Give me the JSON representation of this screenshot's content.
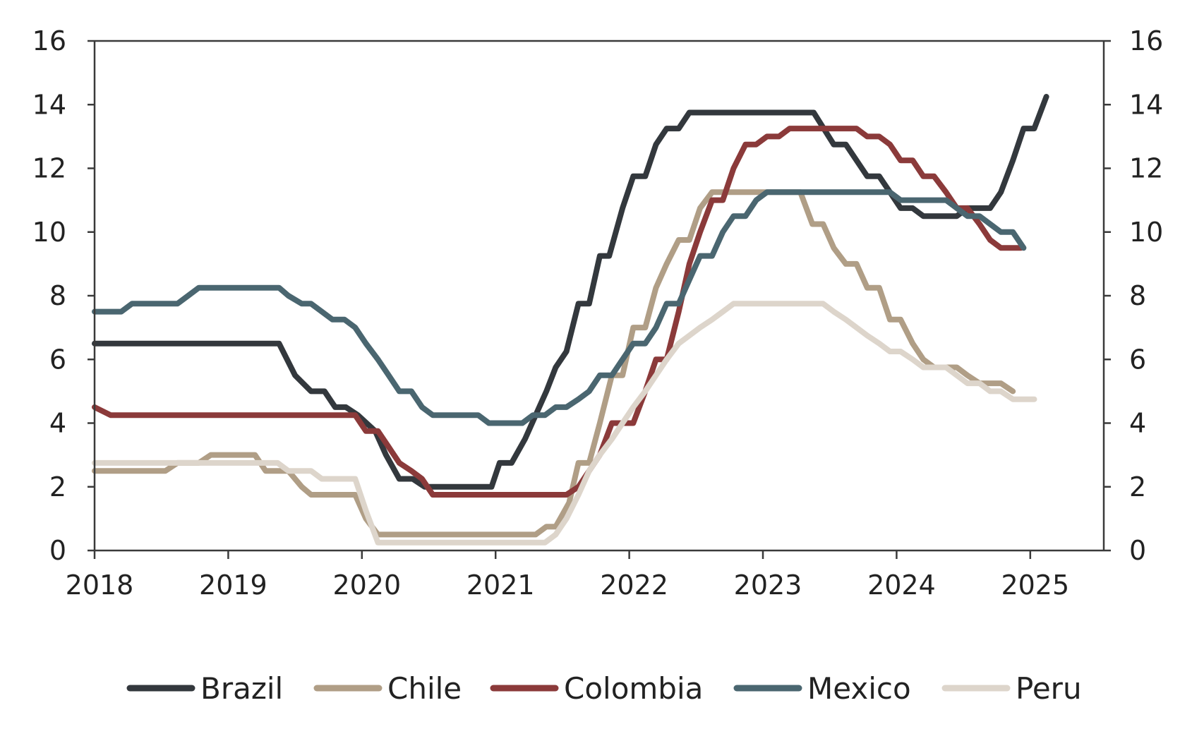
{
  "chart_data": {
    "type": "line",
    "title": "",
    "xlabel": "",
    "ylabel": "",
    "xlim": [
      2018,
      2025.55
    ],
    "ylim": [
      0,
      16
    ],
    "y_ticks": [
      "0",
      "2",
      "4",
      "6",
      "8",
      "10",
      "12",
      "14",
      "16"
    ],
    "y_ticks_right": [
      "0",
      "2",
      "4",
      "6",
      "8",
      "10",
      "12",
      "14",
      "16"
    ],
    "x_ticks": [
      "2018",
      "2019",
      "2020",
      "2021",
      "2022",
      "2023",
      "2024",
      "2025"
    ],
    "grid": false,
    "legend_position": "bottom",
    "series": [
      {
        "name": "Brazil",
        "color": "#33383d",
        "points": [
          [
            2018.0,
            6.5
          ],
          [
            2019.38,
            6.5
          ],
          [
            2019.5,
            5.5
          ],
          [
            2019.62,
            5.0
          ],
          [
            2019.72,
            5.0
          ],
          [
            2019.8,
            4.5
          ],
          [
            2019.88,
            4.5
          ],
          [
            2019.97,
            4.25
          ],
          [
            2020.1,
            3.75
          ],
          [
            2020.18,
            3.0
          ],
          [
            2020.28,
            2.25
          ],
          [
            2020.38,
            2.25
          ],
          [
            2020.47,
            2.0
          ],
          [
            2020.97,
            2.0
          ],
          [
            2021.03,
            2.75
          ],
          [
            2021.12,
            2.75
          ],
          [
            2021.22,
            3.5
          ],
          [
            2021.3,
            4.25
          ],
          [
            2021.38,
            5.0
          ],
          [
            2021.45,
            5.75
          ],
          [
            2021.53,
            6.25
          ],
          [
            2021.62,
            7.75
          ],
          [
            2021.7,
            7.75
          ],
          [
            2021.78,
            9.25
          ],
          [
            2021.85,
            9.25
          ],
          [
            2021.95,
            10.75
          ],
          [
            2022.03,
            11.75
          ],
          [
            2022.12,
            11.75
          ],
          [
            2022.2,
            12.75
          ],
          [
            2022.28,
            13.25
          ],
          [
            2022.37,
            13.25
          ],
          [
            2022.45,
            13.75
          ],
          [
            2023.38,
            13.75
          ],
          [
            2023.53,
            12.75
          ],
          [
            2023.62,
            12.75
          ],
          [
            2023.78,
            11.75
          ],
          [
            2023.87,
            11.75
          ],
          [
            2023.95,
            11.25
          ],
          [
            2024.03,
            10.75
          ],
          [
            2024.12,
            10.75
          ],
          [
            2024.2,
            10.5
          ],
          [
            2024.45,
            10.5
          ],
          [
            2024.53,
            10.75
          ],
          [
            2024.7,
            10.75
          ],
          [
            2024.78,
            11.25
          ],
          [
            2024.87,
            12.25
          ],
          [
            2024.95,
            13.25
          ],
          [
            2025.03,
            13.25
          ],
          [
            2025.12,
            14.25
          ]
        ]
      },
      {
        "name": "Chile",
        "color": "#b09e86",
        "points": [
          [
            2018.0,
            2.5
          ],
          [
            2018.53,
            2.5
          ],
          [
            2018.62,
            2.75
          ],
          [
            2018.78,
            2.75
          ],
          [
            2018.87,
            3.0
          ],
          [
            2019.2,
            3.0
          ],
          [
            2019.28,
            2.5
          ],
          [
            2019.45,
            2.5
          ],
          [
            2019.55,
            2.0
          ],
          [
            2019.62,
            1.75
          ],
          [
            2019.95,
            1.75
          ],
          [
            2020.03,
            1.0
          ],
          [
            2020.12,
            0.5
          ],
          [
            2021.3,
            0.5
          ],
          [
            2021.38,
            0.75
          ],
          [
            2021.45,
            0.75
          ],
          [
            2021.55,
            1.5
          ],
          [
            2021.62,
            2.75
          ],
          [
            2021.7,
            2.75
          ],
          [
            2021.78,
            4.0
          ],
          [
            2021.87,
            5.5
          ],
          [
            2021.95,
            5.5
          ],
          [
            2022.03,
            7.0
          ],
          [
            2022.12,
            7.0
          ],
          [
            2022.2,
            8.25
          ],
          [
            2022.28,
            9.0
          ],
          [
            2022.37,
            9.75
          ],
          [
            2022.45,
            9.75
          ],
          [
            2022.53,
            10.75
          ],
          [
            2022.62,
            11.25
          ],
          [
            2023.28,
            11.25
          ],
          [
            2023.37,
            10.25
          ],
          [
            2023.45,
            10.25
          ],
          [
            2023.53,
            9.5
          ],
          [
            2023.62,
            9.0
          ],
          [
            2023.7,
            9.0
          ],
          [
            2023.78,
            8.25
          ],
          [
            2023.87,
            8.25
          ],
          [
            2023.95,
            7.25
          ],
          [
            2024.03,
            7.25
          ],
          [
            2024.12,
            6.5
          ],
          [
            2024.2,
            6.0
          ],
          [
            2024.28,
            5.75
          ],
          [
            2024.45,
            5.75
          ],
          [
            2024.53,
            5.5
          ],
          [
            2024.62,
            5.25
          ],
          [
            2024.78,
            5.25
          ],
          [
            2024.87,
            5.0
          ]
        ]
      },
      {
        "name": "Colombia",
        "color": "#8b3a3a",
        "points": [
          [
            2018.0,
            4.5
          ],
          [
            2018.12,
            4.25
          ],
          [
            2019.95,
            4.25
          ],
          [
            2020.03,
            3.75
          ],
          [
            2020.12,
            3.75
          ],
          [
            2020.2,
            3.25
          ],
          [
            2020.28,
            2.75
          ],
          [
            2020.37,
            2.5
          ],
          [
            2020.45,
            2.25
          ],
          [
            2020.53,
            1.75
          ],
          [
            2021.53,
            1.75
          ],
          [
            2021.62,
            2.0
          ],
          [
            2021.7,
            2.5
          ],
          [
            2021.78,
            3.0
          ],
          [
            2021.87,
            4.0
          ],
          [
            2021.95,
            4.0
          ],
          [
            2022.03,
            4.0
          ],
          [
            2022.12,
            5.0
          ],
          [
            2022.2,
            6.0
          ],
          [
            2022.28,
            6.0
          ],
          [
            2022.37,
            7.5
          ],
          [
            2022.45,
            9.0
          ],
          [
            2022.53,
            10.0
          ],
          [
            2022.62,
            11.0
          ],
          [
            2022.7,
            11.0
          ],
          [
            2022.78,
            12.0
          ],
          [
            2022.87,
            12.75
          ],
          [
            2022.95,
            12.75
          ],
          [
            2023.03,
            13.0
          ],
          [
            2023.12,
            13.0
          ],
          [
            2023.2,
            13.25
          ],
          [
            2023.7,
            13.25
          ],
          [
            2023.78,
            13.0
          ],
          [
            2023.87,
            13.0
          ],
          [
            2023.95,
            12.75
          ],
          [
            2024.03,
            12.25
          ],
          [
            2024.12,
            12.25
          ],
          [
            2024.2,
            11.75
          ],
          [
            2024.28,
            11.75
          ],
          [
            2024.37,
            11.25
          ],
          [
            2024.45,
            10.75
          ],
          [
            2024.53,
            10.75
          ],
          [
            2024.62,
            10.25
          ],
          [
            2024.7,
            9.75
          ],
          [
            2024.78,
            9.5
          ],
          [
            2024.93,
            9.5
          ]
        ]
      },
      {
        "name": "Mexico",
        "color": "#4a6670",
        "points": [
          [
            2018.0,
            7.5
          ],
          [
            2018.2,
            7.5
          ],
          [
            2018.28,
            7.75
          ],
          [
            2018.62,
            7.75
          ],
          [
            2018.7,
            8.0
          ],
          [
            2018.78,
            8.25
          ],
          [
            2019.38,
            8.25
          ],
          [
            2019.45,
            8.0
          ],
          [
            2019.55,
            7.75
          ],
          [
            2019.62,
            7.75
          ],
          [
            2019.7,
            7.5
          ],
          [
            2019.78,
            7.25
          ],
          [
            2019.87,
            7.25
          ],
          [
            2019.95,
            7.0
          ],
          [
            2020.03,
            6.5
          ],
          [
            2020.12,
            6.0
          ],
          [
            2020.2,
            5.5
          ],
          [
            2020.28,
            5.0
          ],
          [
            2020.37,
            5.0
          ],
          [
            2020.45,
            4.5
          ],
          [
            2020.53,
            4.25
          ],
          [
            2020.87,
            4.25
          ],
          [
            2020.95,
            4.0
          ],
          [
            2021.2,
            4.0
          ],
          [
            2021.28,
            4.25
          ],
          [
            2021.37,
            4.25
          ],
          [
            2021.45,
            4.5
          ],
          [
            2021.53,
            4.5
          ],
          [
            2021.62,
            4.75
          ],
          [
            2021.7,
            5.0
          ],
          [
            2021.78,
            5.5
          ],
          [
            2021.87,
            5.5
          ],
          [
            2021.95,
            6.0
          ],
          [
            2022.03,
            6.5
          ],
          [
            2022.12,
            6.5
          ],
          [
            2022.2,
            7.0
          ],
          [
            2022.28,
            7.75
          ],
          [
            2022.37,
            7.75
          ],
          [
            2022.45,
            8.5
          ],
          [
            2022.53,
            9.25
          ],
          [
            2022.62,
            9.25
          ],
          [
            2022.7,
            10.0
          ],
          [
            2022.78,
            10.5
          ],
          [
            2022.87,
            10.5
          ],
          [
            2022.95,
            11.0
          ],
          [
            2023.03,
            11.25
          ],
          [
            2023.95,
            11.25
          ],
          [
            2024.03,
            11.0
          ],
          [
            2024.37,
            11.0
          ],
          [
            2024.45,
            10.75
          ],
          [
            2024.53,
            10.5
          ],
          [
            2024.62,
            10.5
          ],
          [
            2024.7,
            10.25
          ],
          [
            2024.78,
            10.0
          ],
          [
            2024.87,
            10.0
          ],
          [
            2024.95,
            9.5
          ]
        ]
      },
      {
        "name": "Peru",
        "color": "#ddd5cb",
        "points": [
          [
            2018.0,
            2.75
          ],
          [
            2019.37,
            2.75
          ],
          [
            2019.45,
            2.5
          ],
          [
            2019.62,
            2.5
          ],
          [
            2019.7,
            2.25
          ],
          [
            2019.95,
            2.25
          ],
          [
            2020.03,
            1.25
          ],
          [
            2020.12,
            0.25
          ],
          [
            2021.37,
            0.25
          ],
          [
            2021.45,
            0.5
          ],
          [
            2021.53,
            1.0
          ],
          [
            2021.62,
            1.75
          ],
          [
            2021.7,
            2.5
          ],
          [
            2021.78,
            3.0
          ],
          [
            2021.87,
            3.5
          ],
          [
            2021.95,
            4.0
          ],
          [
            2022.03,
            4.5
          ],
          [
            2022.12,
            5.0
          ],
          [
            2022.2,
            5.5
          ],
          [
            2022.28,
            6.0
          ],
          [
            2022.37,
            6.5
          ],
          [
            2022.45,
            6.75
          ],
          [
            2022.53,
            7.0
          ],
          [
            2022.62,
            7.25
          ],
          [
            2022.7,
            7.5
          ],
          [
            2022.78,
            7.75
          ],
          [
            2023.45,
            7.75
          ],
          [
            2023.53,
            7.5
          ],
          [
            2023.62,
            7.25
          ],
          [
            2023.7,
            7.0
          ],
          [
            2023.78,
            6.75
          ],
          [
            2023.87,
            6.5
          ],
          [
            2023.95,
            6.25
          ],
          [
            2024.03,
            6.25
          ],
          [
            2024.12,
            6.0
          ],
          [
            2024.2,
            5.75
          ],
          [
            2024.37,
            5.75
          ],
          [
            2024.45,
            5.5
          ],
          [
            2024.53,
            5.25
          ],
          [
            2024.62,
            5.25
          ],
          [
            2024.7,
            5.0
          ],
          [
            2024.78,
            5.0
          ],
          [
            2024.87,
            4.75
          ],
          [
            2025.03,
            4.75
          ]
        ]
      }
    ]
  }
}
